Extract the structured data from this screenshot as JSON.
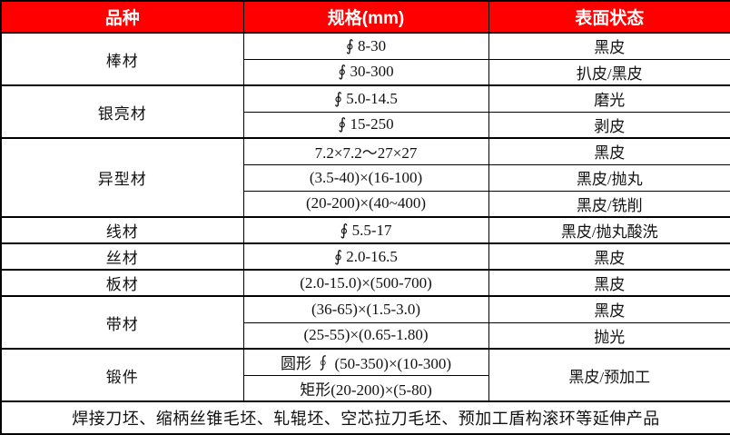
{
  "table": {
    "header": {
      "col_variety": "品种",
      "col_spec": "规格(mm)",
      "col_surface": "表面状态"
    },
    "sections": [
      {
        "category": "棒材",
        "rows": [
          {
            "spec": "∮ 8-30",
            "surface": "黑皮"
          },
          {
            "spec": "∮ 30-300",
            "surface": "扒皮/黑皮"
          }
        ]
      },
      {
        "category": "银亮材",
        "rows": [
          {
            "spec": "∮ 5.0-14.5",
            "surface": "磨光"
          },
          {
            "spec": "∮ 15-250",
            "surface": "剥皮"
          }
        ]
      },
      {
        "category": "异型材",
        "rows": [
          {
            "spec": "7.2×7.2～27×27",
            "surface": "黑皮"
          },
          {
            "spec": "(3.5-40)×(16-100)",
            "surface": "黑皮/抛丸"
          },
          {
            "spec": "(20-200)×(40~400)",
            "surface": "黑皮/铣削"
          }
        ]
      },
      {
        "category": "线材",
        "rows": [
          {
            "spec": "∮ 5.5-17",
            "surface": "黑皮/抛丸酸洗"
          }
        ]
      },
      {
        "category": "丝材",
        "rows": [
          {
            "spec": "∮ 2.0-16.5",
            "surface": "黑皮"
          }
        ]
      },
      {
        "category": "板材",
        "rows": [
          {
            "spec": "(2.0-15.0)×(500-700)",
            "surface": "黑皮"
          }
        ]
      },
      {
        "category": "带材",
        "rows": [
          {
            "spec": "(36-65)×(1.5-3.0)",
            "surface": "黑皮"
          },
          {
            "spec": "(25-55)×(0.65-1.80)",
            "surface": "抛光"
          }
        ]
      },
      {
        "category": "锻件",
        "merged_surface": "黑皮/预加工",
        "rows": [
          {
            "spec": "圆形 ∮ (50-350)×(10-300)"
          },
          {
            "spec": "矩形(20-200)×(5-80)"
          }
        ]
      }
    ],
    "footer": "焊接刀坯、缩柄丝锥毛坯、轧辊坯、空芯拉刀毛坯、预加工盾构滚环等延伸产品"
  },
  "colors": {
    "header_bg": "#FE0000",
    "header_text": "#FFFFFF",
    "border": "#000000",
    "cell_bg": "#FFFFFF",
    "cell_text": "#111111"
  }
}
